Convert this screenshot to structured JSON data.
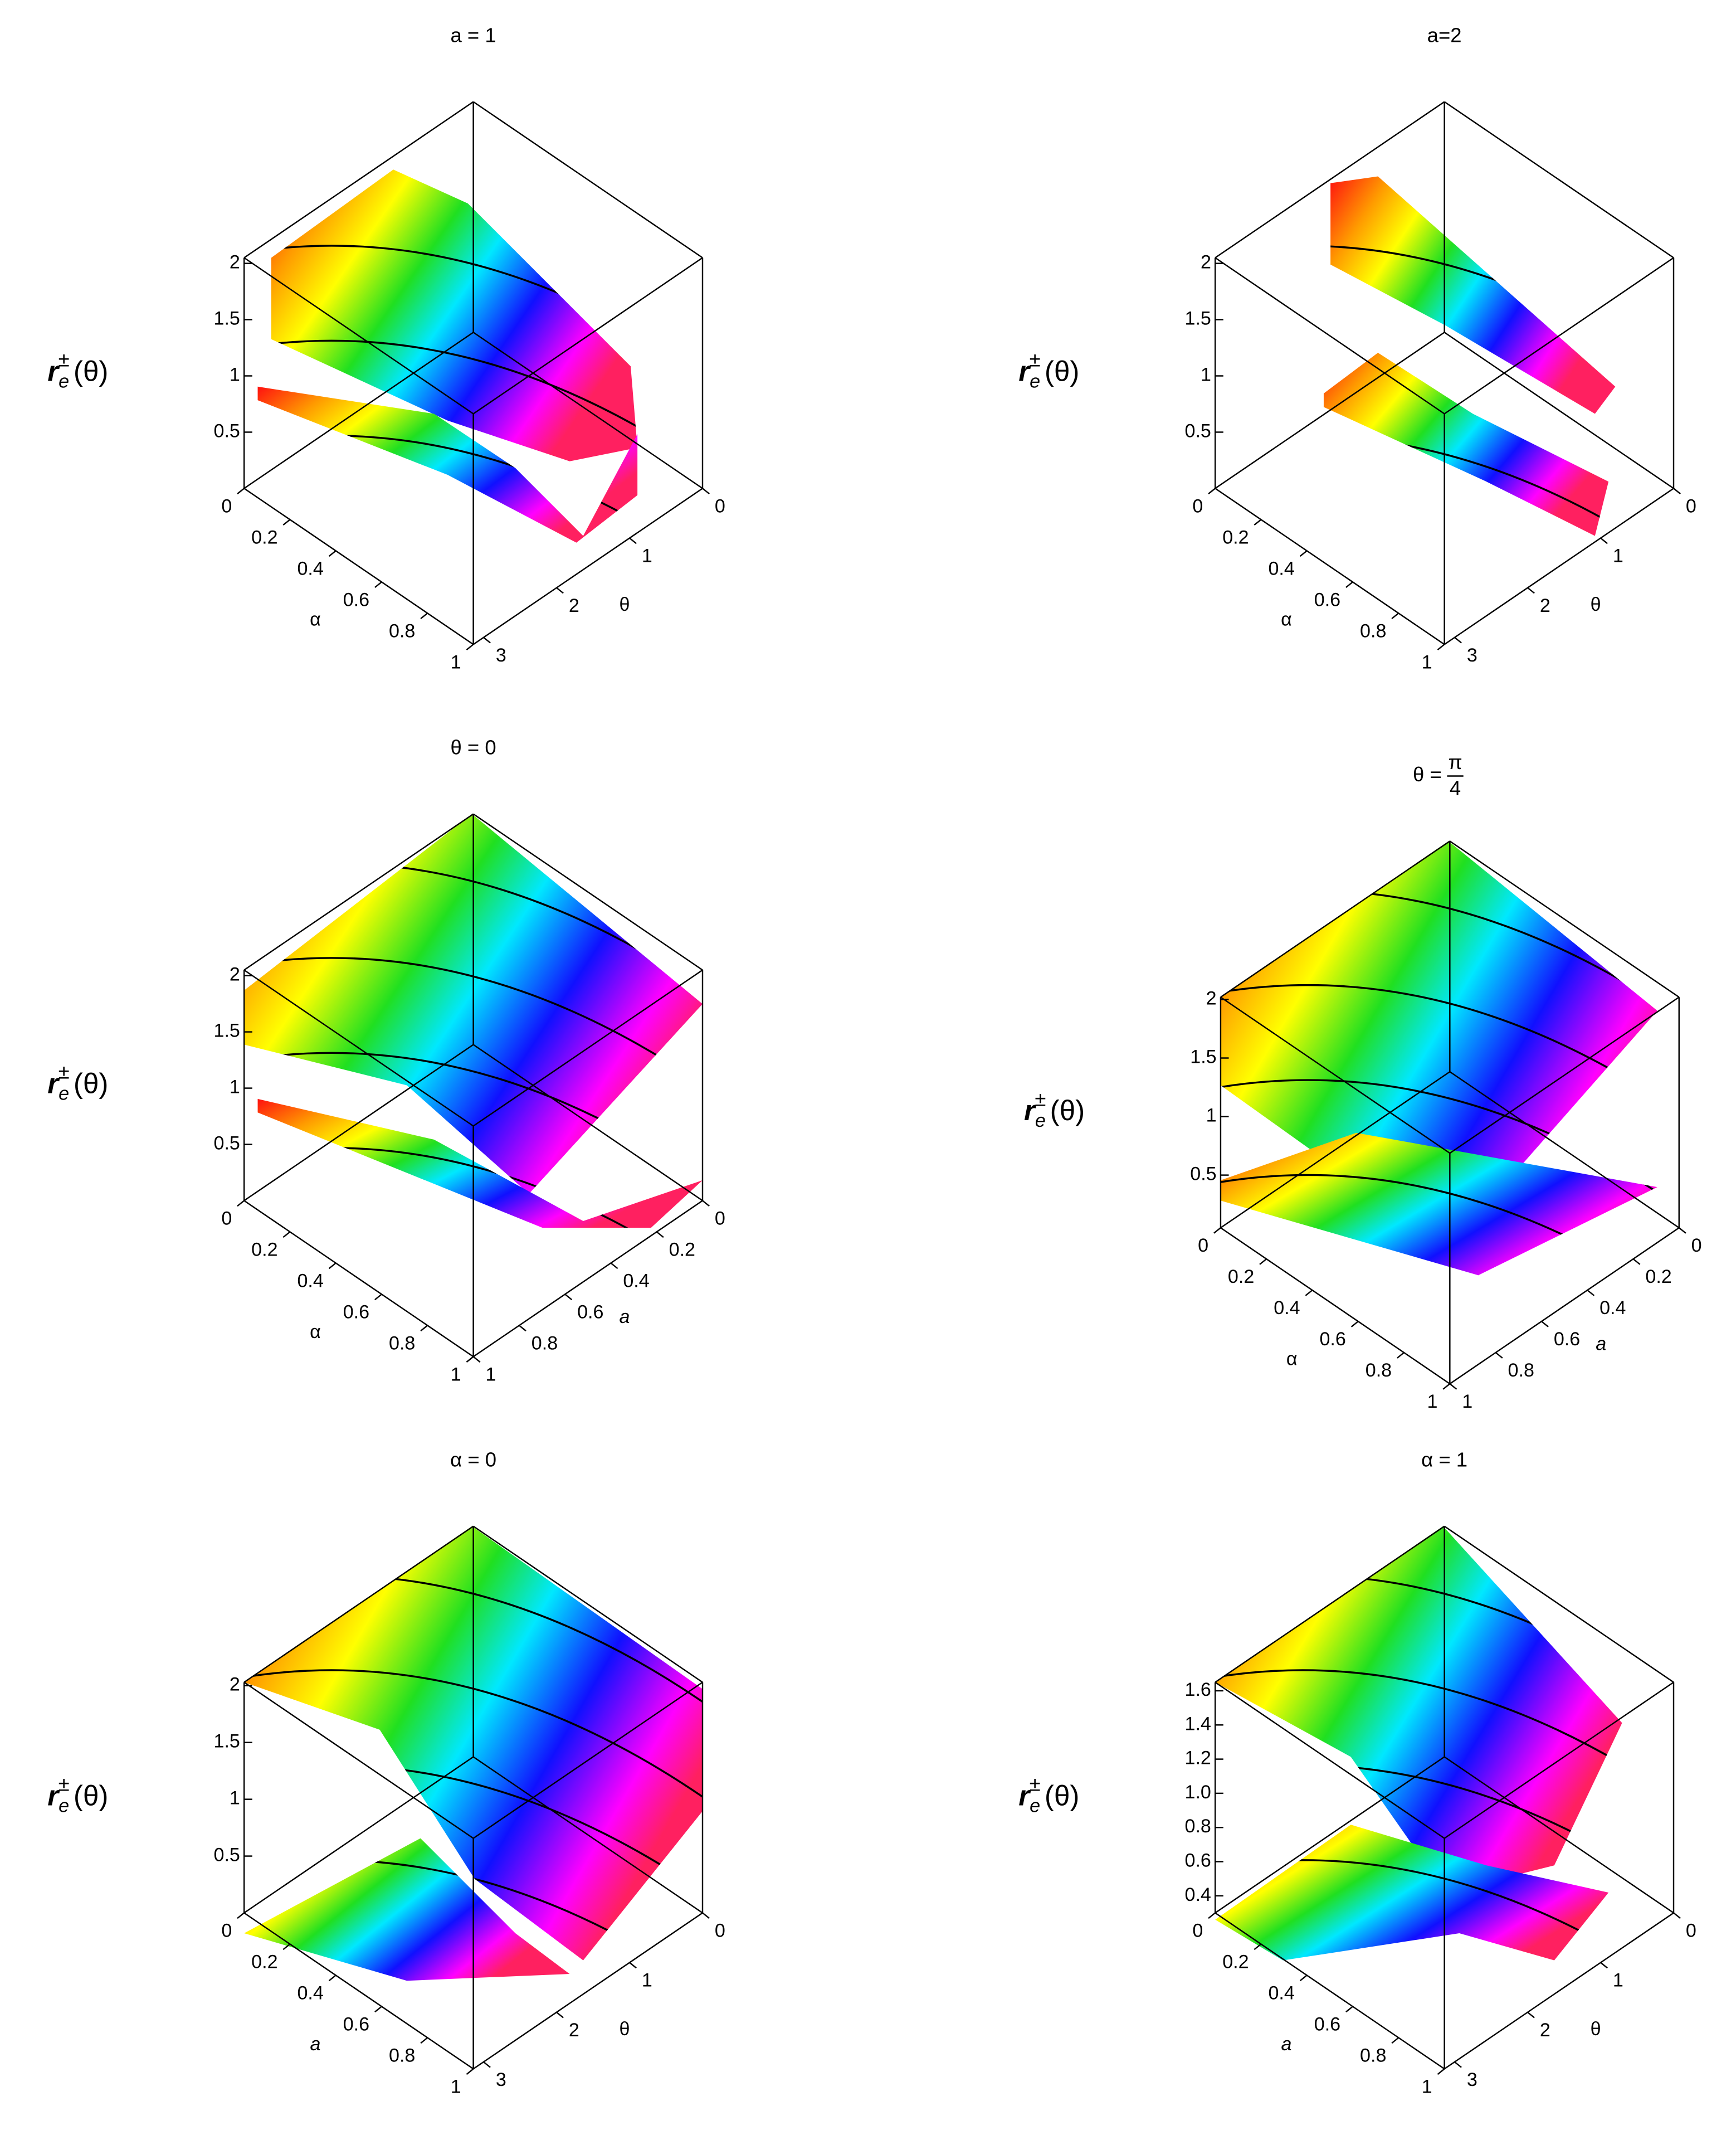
{
  "chart_data": [
    {
      "type": "surface3d",
      "title": "a = 1",
      "zlabel": {
        "base": "r",
        "sub": "e",
        "sup": "±",
        "arg": "(θ)"
      },
      "xlabel": "α",
      "xlim": [
        0,
        1
      ],
      "xticks": [
        0,
        0.2,
        0.4,
        0.6,
        0.8,
        1
      ],
      "ylabel": "θ",
      "ylim": [
        0,
        3.14
      ],
      "yticks": [
        0,
        1,
        2,
        3
      ],
      "zlim": [
        0,
        2.05
      ],
      "zticks": [
        0.5,
        1,
        1.5,
        2
      ]
    },
    {
      "type": "surface3d",
      "title": "a=2",
      "zlabel": {
        "base": "r",
        "sub": "e",
        "sup": "±",
        "arg": "(θ)"
      },
      "xlabel": "α",
      "xlim": [
        0,
        1
      ],
      "xticks": [
        0,
        0.2,
        0.4,
        0.6,
        0.8,
        1
      ],
      "ylabel": "θ",
      "ylim": [
        0,
        3.14
      ],
      "yticks": [
        0,
        1,
        2,
        3
      ],
      "zlim": [
        0,
        2.05
      ],
      "zticks": [
        0.5,
        1,
        1.5,
        2
      ]
    },
    {
      "type": "surface3d",
      "title": "θ = 0",
      "zlabel": {
        "base": "r",
        "sub": "e",
        "sup": "±",
        "arg": "(θ)"
      },
      "xlabel": "α",
      "xlim": [
        0,
        1
      ],
      "xticks": [
        0,
        0.2,
        0.4,
        0.6,
        0.8,
        1
      ],
      "ylabel": "a",
      "ylim": [
        0,
        1
      ],
      "yticks": [
        0,
        0.2,
        0.4,
        0.6,
        0.8,
        1
      ],
      "zlim": [
        0,
        2.05
      ],
      "zticks": [
        0.5,
        1,
        1.5,
        2
      ]
    },
    {
      "type": "surface3d",
      "title": "θ =",
      "title_numerator": "π",
      "title_denominator": "4",
      "zlabel": {
        "base": "r",
        "sub": "e",
        "sup": "±",
        "arg": "(θ)"
      },
      "xlabel": "α",
      "xlim": [
        0,
        1
      ],
      "xticks": [
        0,
        0.2,
        0.4,
        0.6,
        0.8,
        1
      ],
      "ylabel": "a",
      "ylim": [
        0,
        1
      ],
      "yticks": [
        0,
        0.2,
        0.4,
        0.6,
        0.8,
        1
      ],
      "zlim": [
        0.05,
        2.02
      ],
      "zticks": [
        0.5,
        1,
        1.5,
        2
      ]
    },
    {
      "type": "surface3d",
      "title": "α = 0",
      "zlabel": {
        "base": "r",
        "sub": "e",
        "sup": "±",
        "arg": "(θ)"
      },
      "xlabel": "a",
      "xlim": [
        0,
        1
      ],
      "xticks": [
        0,
        0.2,
        0.4,
        0.6,
        0.8,
        1
      ],
      "ylabel": "θ",
      "ylim": [
        0,
        3.14
      ],
      "yticks": [
        0,
        1,
        2,
        3
      ],
      "zlim": [
        0,
        2.03
      ],
      "zticks": [
        0.5,
        1,
        1.5,
        2
      ]
    },
    {
      "type": "surface3d",
      "title": "α = 1",
      "zlabel": {
        "base": "r",
        "sub": "e",
        "sup": "±",
        "arg": "(θ)"
      },
      "xlabel": "a",
      "xlim": [
        0,
        1
      ],
      "xticks": [
        0,
        0.2,
        0.4,
        0.6,
        0.8,
        1
      ],
      "ylabel": "θ",
      "ylim": [
        0,
        3.14
      ],
      "yticks": [
        0,
        1,
        2,
        3
      ],
      "zlim": [
        0.3,
        1.65
      ],
      "zticks": [
        0.4,
        0.6,
        0.8,
        {
          "value": 1,
          "label": "1.0"
        },
        1.2,
        1.4,
        1.6
      ]
    }
  ]
}
